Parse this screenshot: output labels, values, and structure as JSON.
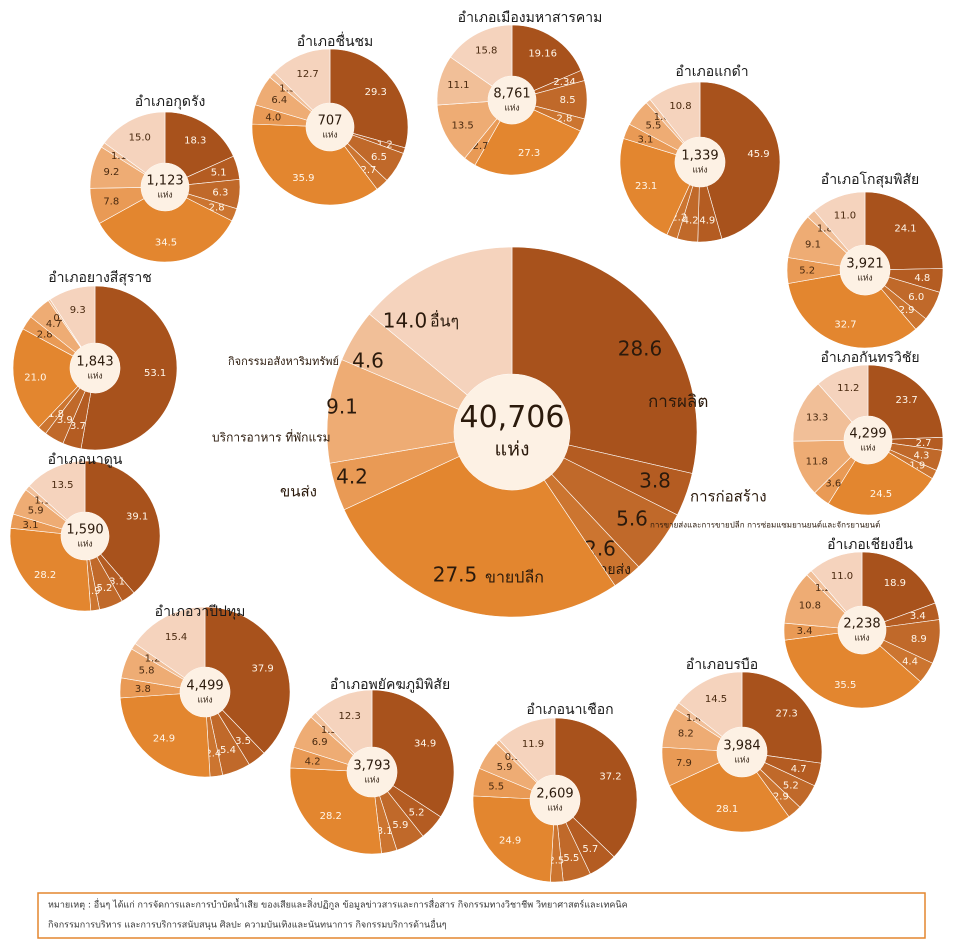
{
  "chart_data": [
    {
      "type": "donut",
      "title": null,
      "total": {
        "value": 40706,
        "label": "40,706"
      },
      "unit": "แห่ง",
      "categories": [
        "การผลิต",
        "การก่อสร้าง",
        "การขายส่งและการขายปลีก การซ่อมแซมยานยนต์และจักรยานยนต์",
        "ขายส่ง",
        "ขายปลีก",
        "ขนส่ง",
        "บริการอาหาร ที่พักแรม",
        "กิจกรรมอสังหาริมทรัพย์",
        "อื่นๆ"
      ],
      "values": [
        28.6,
        3.8,
        5.6,
        2.6,
        27.5,
        4.2,
        9.1,
        4.6,
        14.0
      ],
      "value_labels": [
        "28.6",
        "3.8",
        "5.6",
        "2.6",
        "27.5",
        "4.2",
        "9.1",
        "4.6",
        "14.0"
      ],
      "colors": [
        "#a8521c",
        "#b45c22",
        "#c0692a",
        "#cc7530",
        "#e3862f",
        "#e99a55",
        "#eeac74",
        "#f1bf98",
        "#f5d3bd"
      ]
    },
    {
      "type": "donut",
      "title": "อำเภอกุดรัง",
      "total": {
        "value": 1123,
        "label": "1,123"
      },
      "unit": "แห่ง",
      "values": [
        18.3,
        5.1,
        6.3,
        2.8,
        34.5,
        7.8,
        9.2,
        1.1,
        15.0
      ],
      "value_labels": [
        "18.3",
        "5.1",
        "6.3",
        "2.8",
        "34.5",
        "7.8",
        "9.2",
        "1.1",
        "15.0"
      ],
      "colors": [
        "#a8521c",
        "#b45c22",
        "#c0692a",
        "#cc7530",
        "#e3862f",
        "#e99a55",
        "#eeac74",
        "#f1bf98",
        "#f5d3bd"
      ]
    },
    {
      "type": "donut",
      "title": "อำเภอชื่นชม",
      "total": {
        "value": 707,
        "label": "707"
      },
      "unit": "แห่ง",
      "values": [
        29.3,
        1.2,
        6.5,
        2.7,
        35.9,
        4.0,
        6.4,
        1.3,
        12.7
      ],
      "value_labels": [
        "29.3",
        "1.2",
        "6.5",
        "2.7",
        "35.9",
        "4.0",
        "6.4",
        "1.3",
        "12.7"
      ],
      "colors": [
        "#a8521c",
        "#b45c22",
        "#c0692a",
        "#cc7530",
        "#e3862f",
        "#e99a55",
        "#eeac74",
        "#f1bf98",
        "#f5d3bd"
      ]
    },
    {
      "type": "donut",
      "title": "อำเภอเมืองมหาสารคาม",
      "total": {
        "value": 8761,
        "label": "8,761"
      },
      "unit": "แห่ง",
      "values": [
        19.16,
        2.34,
        8.5,
        2.8,
        27.3,
        2.7,
        13.5,
        11.1,
        15.8
      ],
      "value_labels": [
        "19.16",
        "2.34",
        "8.5",
        "2.8",
        "27.3",
        "2.7",
        "13.5",
        "11.1",
        "15.8"
      ],
      "colors": [
        "#a8521c",
        "#b45c22",
        "#c0692a",
        "#cc7530",
        "#e3862f",
        "#e99a55",
        "#eeac74",
        "#f1bf98",
        "#f5d3bd"
      ]
    },
    {
      "type": "donut",
      "title": "อำเภอแกดำ",
      "total": {
        "value": 1339,
        "label": "1,339"
      },
      "unit": "แห่ง",
      "values": [
        45.9,
        4.9,
        4.2,
        2.2,
        23.1,
        3.1,
        5.5,
        1.0,
        10.8
      ],
      "value_labels": [
        "45.9",
        "4.9",
        "4.2",
        "2.2",
        "23.1",
        "3.1",
        "5.5",
        "1.0",
        "10.8"
      ],
      "colors": [
        "#a8521c",
        "#b45c22",
        "#c0692a",
        "#cc7530",
        "#e3862f",
        "#e99a55",
        "#eeac74",
        "#f1bf98",
        "#f5d3bd"
      ]
    },
    {
      "type": "donut",
      "title": "อำเภอโกสุมพิสัย",
      "total": {
        "value": 3921,
        "label": "3,921"
      },
      "unit": "แห่ง",
      "values": [
        24.1,
        4.8,
        6.0,
        2.9,
        32.7,
        5.2,
        9.1,
        1.8,
        11.0
      ],
      "value_labels": [
        "24.1",
        "4.8",
        "6.0",
        "2.9",
        "32.7",
        "5.2",
        "9.1",
        "1.8",
        "11.0"
      ],
      "colors": [
        "#a8521c",
        "#b45c22",
        "#c0692a",
        "#cc7530",
        "#e3862f",
        "#e99a55",
        "#eeac74",
        "#f1bf98",
        "#f5d3bd"
      ]
    },
    {
      "type": "donut",
      "title": "อำเภอกันทรวิชัย",
      "total": {
        "value": 4299,
        "label": "4,299"
      },
      "unit": "แห่ง",
      "values": [
        23.7,
        2.7,
        4.3,
        1.9,
        24.5,
        3.6,
        11.8,
        13.3,
        11.2
      ],
      "value_labels": [
        "23.7",
        "2.7",
        "4.3",
        "1.9",
        "24.5",
        "3.6",
        "11.8",
        "13.3",
        "11.2"
      ],
      "colors": [
        "#a8521c",
        "#b45c22",
        "#c0692a",
        "#cc7530",
        "#e3862f",
        "#e99a55",
        "#eeac74",
        "#f1bf98",
        "#f5d3bd"
      ]
    },
    {
      "type": "donut",
      "title": "อำเภอเชียงยืน",
      "total": {
        "value": 2238,
        "label": "2,238"
      },
      "unit": "แห่ง",
      "values": [
        18.9,
        3.4,
        8.9,
        4.4,
        35.5,
        3.4,
        10.8,
        1.2,
        11.0
      ],
      "value_labels": [
        "18.9",
        "3.4",
        "8.9",
        "4.4",
        "35.5",
        "3.4",
        "10.8",
        "1.2",
        "11.0"
      ],
      "colors": [
        "#a8521c",
        "#b45c22",
        "#c0692a",
        "#cc7530",
        "#e3862f",
        "#e99a55",
        "#eeac74",
        "#f1bf98",
        "#f5d3bd"
      ]
    },
    {
      "type": "donut",
      "title": "อำเภอบรบือ",
      "total": {
        "value": 3984,
        "label": "3,984"
      },
      "unit": "แห่ง",
      "values": [
        27.3,
        4.7,
        5.2,
        2.9,
        28.1,
        7.9,
        8.2,
        1.4,
        14.5
      ],
      "value_labels": [
        "27.3",
        "4.7",
        "5.2",
        "2.9",
        "28.1",
        "7.9",
        "8.2",
        "1.4",
        "14.5"
      ],
      "colors": [
        "#a8521c",
        "#b45c22",
        "#c0692a",
        "#cc7530",
        "#e3862f",
        "#e99a55",
        "#eeac74",
        "#f1bf98",
        "#f5d3bd"
      ]
    },
    {
      "type": "donut",
      "title": "อำเภอนาเชือก",
      "total": {
        "value": 2609,
        "label": "2,609"
      },
      "unit": "แห่ง",
      "values": [
        37.2,
        5.7,
        5.5,
        2.5,
        24.9,
        5.5,
        5.9,
        0.9,
        11.9
      ],
      "value_labels": [
        "37.2",
        "5.7",
        "5.5",
        "2.5",
        "24.9",
        "5.5",
        "5.9",
        "0.9",
        "11.9"
      ],
      "colors": [
        "#a8521c",
        "#b45c22",
        "#c0692a",
        "#cc7530",
        "#e3862f",
        "#e99a55",
        "#eeac74",
        "#f1bf98",
        "#f5d3bd"
      ]
    },
    {
      "type": "donut",
      "title": "อำเภอพยัคฆภูมิพิสัย",
      "total": {
        "value": 3793,
        "label": "3,793"
      },
      "unit": "แห่ง",
      "values": [
        34.9,
        5.2,
        5.9,
        3.1,
        28.2,
        4.2,
        6.9,
        1.3,
        12.3
      ],
      "value_labels": [
        "34.9",
        "5.2",
        "5.9",
        "3.1",
        "28.2",
        "4.2",
        "6.9",
        "1.3",
        "12.3"
      ],
      "colors": [
        "#a8521c",
        "#b45c22",
        "#c0692a",
        "#cc7530",
        "#e3862f",
        "#e99a55",
        "#eeac74",
        "#f1bf98",
        "#f5d3bd"
      ]
    },
    {
      "type": "donut",
      "title": "อำเภอวาปีปทุม",
      "total": {
        "value": 4499,
        "label": "4,499"
      },
      "unit": "แห่ง",
      "values": [
        37.9,
        3.5,
        5.4,
        2.4,
        24.9,
        3.8,
        5.8,
        1.2,
        15.4
      ],
      "value_labels": [
        "37.9",
        "3.5",
        "5.4",
        "2.4",
        "24.9",
        "3.8",
        "5.8",
        "1.2",
        "15.4"
      ],
      "colors": [
        "#a8521c",
        "#b45c22",
        "#c0692a",
        "#cc7530",
        "#e3862f",
        "#e99a55",
        "#eeac74",
        "#f1bf98",
        "#f5d3bd"
      ]
    },
    {
      "type": "donut",
      "title": "อำเภอนาดูน",
      "total": {
        "value": 1590,
        "label": "1,590"
      },
      "unit": "แห่ง",
      "values": [
        39.1,
        3.1,
        5.2,
        1.9,
        28.2,
        3.1,
        5.9,
        1.1,
        13.5
      ],
      "value_labels": [
        "39.1",
        "3.1",
        "5.2",
        "1.9",
        "28.2",
        "3.1",
        "5.9",
        "1.1",
        "13.5"
      ],
      "colors": [
        "#a8521c",
        "#b45c22",
        "#c0692a",
        "#cc7530",
        "#e3862f",
        "#e99a55",
        "#eeac74",
        "#f1bf98",
        "#f5d3bd"
      ]
    },
    {
      "type": "donut",
      "title": "อำเภอยางสีสุราช",
      "total": {
        "value": 1843,
        "label": "1,843"
      },
      "unit": "แห่ง",
      "values": [
        53.1,
        3.7,
        3.9,
        1.8,
        21.0,
        2.8,
        4.7,
        0.4,
        9.3
      ],
      "value_labels": [
        "53.1",
        "3.7",
        "3.9",
        "1.8",
        "21.0",
        "2.8",
        "4.7",
        "0.4",
        "9.3"
      ],
      "colors": [
        "#a8521c",
        "#b45c22",
        "#c0692a",
        "#cc7530",
        "#e3862f",
        "#e99a55",
        "#eeac74",
        "#f1bf98",
        "#f5d3bd"
      ]
    }
  ],
  "note": {
    "lines": [
      "หมายเหตุ : อื่นๆ ได้แก่ การจัดการและการบำบัดน้ำเสีย ของเสียและสิ่งปฏิกูล ข้อมูลข่าวสารและการสื่อสาร กิจกรรมทางวิชาชีพ วิทยาศาสตร์และเทคนิค",
      "กิจกรรมการบริหาร และการบริการสนับสนุน ศิลปะ ความบันเทิงและนันทนาการ กิจกรรมบริการด้านอื่นๆ"
    ]
  }
}
